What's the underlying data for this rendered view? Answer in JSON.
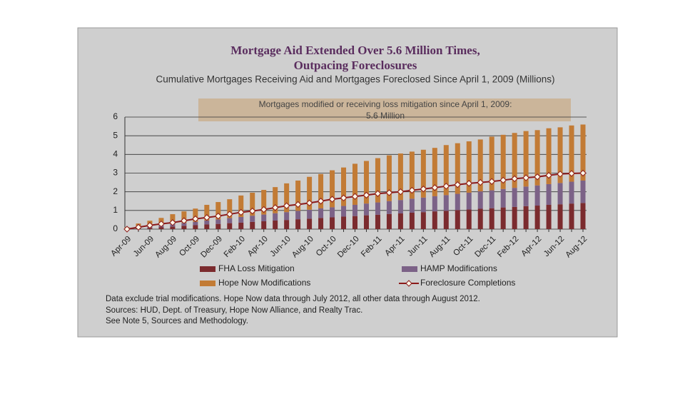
{
  "chart_data": {
    "type": "bar",
    "title": "Mortgage Aid Extended Over 5.6 Million Times,",
    "title_line2": "Outpacing Foreclosures",
    "subtitle": "Cumulative Mortgages Receiving Aid and Mortgages Foreclosed Since April 1, 2009 (Millions)",
    "annotation": "Mortgages modified or receiving loss mitigation since April 1, 2009:",
    "annotation_line2": "5.6 Million",
    "notes": [
      "Data exclude trial modifications. Hope Now data through July 2012, all other data through August 2012.",
      "Sources:  HUD, Dept. of Treasury, Hope Now Alliance, and Realty Trac.",
      "See Note 5, Sources and Methodology."
    ],
    "categories": [
      "Apr-09",
      null,
      "Jun-09",
      null,
      "Aug-09",
      null,
      "Oct-09",
      null,
      "Dec-09",
      null,
      "Feb-10",
      null,
      "Apr-10",
      null,
      "Jun-10",
      null,
      "Aug-10",
      null,
      "Oct-10",
      null,
      "Dec-10",
      null,
      "Feb-11",
      null,
      "Apr-11",
      null,
      "Jun-11",
      null,
      "Aug-11",
      null,
      "Oct-11",
      null,
      "Dec-11",
      null,
      "Feb-12",
      null,
      "Apr-12",
      null,
      "Jun-12",
      null,
      "Aug-12"
    ],
    "series": [
      {
        "name": "FHA Loss Mitigation",
        "color": "#7b2b2e",
        "values": [
          0,
          0.04,
          0.07,
          0.11,
          0.14,
          0.18,
          0.21,
          0.25,
          0.28,
          0.32,
          0.35,
          0.39,
          0.42,
          0.46,
          0.49,
          0.53,
          0.56,
          0.6,
          0.63,
          0.67,
          0.7,
          0.74,
          0.77,
          0.81,
          0.84,
          0.88,
          0.91,
          0.95,
          0.98,
          1.02,
          1.05,
          1.09,
          1.12,
          1.16,
          1.19,
          1.23,
          1.26,
          1.3,
          1.33,
          1.37,
          1.4
        ]
      },
      {
        "name": "HAMP Modifications",
        "color": "#7c6287",
        "values": [
          0,
          0.03,
          0.06,
          0.09,
          0.12,
          0.15,
          0.18,
          0.21,
          0.24,
          0.27,
          0.3,
          0.33,
          0.36,
          0.39,
          0.42,
          0.45,
          0.48,
          0.51,
          0.54,
          0.57,
          0.6,
          0.63,
          0.66,
          0.69,
          0.72,
          0.75,
          0.78,
          0.81,
          0.84,
          0.87,
          0.9,
          0.93,
          0.96,
          0.99,
          1.02,
          1.05,
          1.08,
          1.11,
          1.14,
          1.17,
          1.2
        ]
      },
      {
        "name": "Hope Now Modifications",
        "color": "#c27b35",
        "values": [
          0.1,
          0.23,
          0.32,
          0.4,
          0.54,
          0.62,
          0.71,
          0.84,
          0.93,
          1.01,
          1.15,
          1.23,
          1.32,
          1.4,
          1.54,
          1.62,
          1.76,
          1.84,
          1.98,
          2.06,
          2.2,
          2.28,
          2.37,
          2.45,
          2.49,
          2.52,
          2.56,
          2.59,
          2.68,
          2.71,
          2.75,
          2.78,
          2.87,
          2.9,
          2.94,
          2.97,
          2.96,
          2.99,
          2.98,
          3.01,
          3.0
        ]
      },
      {
        "name": "Foreclosure Completions",
        "color": "#8b1a1a",
        "type": "line",
        "values": [
          0,
          0.1,
          0.2,
          0.28,
          0.35,
          0.45,
          0.55,
          0.62,
          0.7,
          0.8,
          0.9,
          0.97,
          1.05,
          1.15,
          1.25,
          1.32,
          1.4,
          1.5,
          1.6,
          1.67,
          1.75,
          1.82,
          1.9,
          1.95,
          2.0,
          2.08,
          2.15,
          2.22,
          2.3,
          2.38,
          2.45,
          2.5,
          2.55,
          2.62,
          2.7,
          2.75,
          2.8,
          2.88,
          2.95,
          2.98,
          3.0
        ]
      }
    ],
    "ylim": [
      0,
      6
    ],
    "yticks": [
      0,
      1,
      2,
      3,
      4,
      5,
      6
    ],
    "grid": true
  }
}
